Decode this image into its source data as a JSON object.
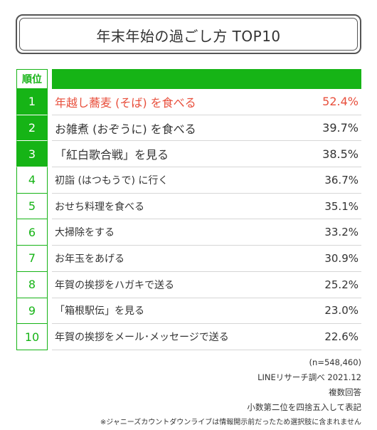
{
  "title": "年末年始の過ごし方 TOP10",
  "rank_header": "順位",
  "colors": {
    "accent": "#16b416",
    "highlight": "#e84f3c",
    "text": "#333333"
  },
  "chart_data": {
    "type": "table",
    "title": "年末年始の過ごし方 TOP10",
    "columns": [
      "順位",
      "",
      ""
    ],
    "rows": [
      {
        "rank": "1",
        "label": "年越し蕎麦 (そば) を食べる",
        "value": 52.4,
        "display": "52.4%"
      },
      {
        "rank": "2",
        "label": "お雑煮 (おぞうに) を食べる",
        "value": 39.7,
        "display": "39.7%"
      },
      {
        "rank": "3",
        "label": "「紅白歌合戦」を見る",
        "value": 38.5,
        "display": "38.5%"
      },
      {
        "rank": "4",
        "label": "初詣 (はつもうで) に行く",
        "value": 36.7,
        "display": "36.7%"
      },
      {
        "rank": "5",
        "label": "おせち料理を食べる",
        "value": 35.1,
        "display": "35.1%"
      },
      {
        "rank": "6",
        "label": "大掃除をする",
        "value": 33.2,
        "display": "33.2%"
      },
      {
        "rank": "7",
        "label": "お年玉をあげる",
        "value": 30.9,
        "display": "30.9%"
      },
      {
        "rank": "8",
        "label": "年賀の挨拶をハガキで送る",
        "value": 25.2,
        "display": "25.2%"
      },
      {
        "rank": "9",
        "label": "「箱根駅伝」を見る",
        "value": 23.0,
        "display": "23.0%"
      },
      {
        "rank": "10",
        "label": "年賀の挨拶をメール･メッセージで送る",
        "value": 22.6,
        "display": "22.6%"
      }
    ]
  },
  "notes": {
    "sample": "(n=548,460)",
    "source": "LINEリサーチ調べ 2021.12",
    "multi": "複数回答",
    "rounding": "小数第二位を四捨五入して表記",
    "disclaimer": "※ジャニーズカウントダウンライブは情報開示前だったため選択肢に含まれません"
  }
}
